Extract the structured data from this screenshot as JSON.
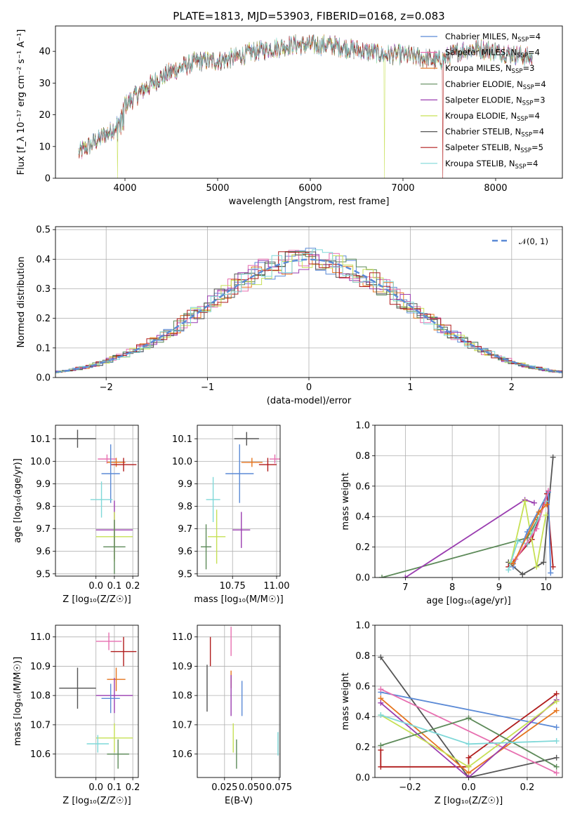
{
  "chart_data": [
    {
      "id": "spectrum",
      "type": "line",
      "title": "PLATE=1813, MJD=53903, FIBERID=0168, z=0.083",
      "xlabel": "wavelength [Angstrom, rest frame]",
      "ylabel": "Flux [f_λ 10⁻¹⁷ erg cm⁻² s⁻¹ A⁻¹]",
      "xlim": [
        3250,
        8720
      ],
      "ylim": [
        0,
        48
      ],
      "xticks": [
        "4000",
        "5000",
        "6000",
        "7000",
        "8000"
      ],
      "yticks": [
        "0",
        "10",
        "20",
        "30",
        "40"
      ],
      "legend_position": "upper right",
      "continuum": {
        "x": [
          3500,
          3700,
          3900,
          4000,
          4200,
          4400,
          4600,
          4800,
          5000,
          5200,
          5400,
          5600,
          5800,
          6000,
          6200,
          6400,
          6600,
          6800,
          7000,
          7200,
          7400,
          7600,
          7800,
          8000,
          8200,
          8400
        ],
        "y": [
          8,
          12,
          16,
          23,
          28,
          32,
          35,
          37,
          37,
          38,
          40,
          41,
          42,
          42,
          42,
          41,
          40,
          39,
          39,
          38,
          37,
          40,
          41,
          40,
          39,
          38
        ]
      },
      "dropouts": [
        {
          "series": "Kroupa ELODIE",
          "x": 3920
        },
        {
          "series": "Kroupa ELODIE",
          "x": 6800
        },
        {
          "series": "Salpeter STELIB",
          "x": 7430
        }
      ],
      "series": [
        {
          "name": "Chabrier MILES",
          "nssp": "4",
          "color": "#5b8ad6"
        },
        {
          "name": "Salpeter MILES",
          "nssp": "4",
          "color": "#e76fb0"
        },
        {
          "name": "Kroupa MILES",
          "nssp": "3",
          "color": "#e5751f"
        },
        {
          "name": "Chabrier ELODIE",
          "nssp": "4",
          "color": "#5d8a59"
        },
        {
          "name": "Salpeter ELODIE",
          "nssp": "3",
          "color": "#9a3db0"
        },
        {
          "name": "Kroupa ELODIE",
          "nssp": "4",
          "color": "#c6e055"
        },
        {
          "name": "Chabrier STELIB",
          "nssp": "4",
          "color": "#555555"
        },
        {
          "name": "Salpeter STELIB",
          "nssp": "5",
          "color": "#b01c1c"
        },
        {
          "name": "Kroupa STELIB",
          "nssp": "4",
          "color": "#7fd8d8"
        }
      ]
    },
    {
      "id": "residuals",
      "type": "histogram",
      "xlabel": "(data-model)/error",
      "ylabel": "Normed distribution",
      "xlim": [
        -2.5,
        2.5
      ],
      "ylim": [
        0,
        0.51
      ],
      "xticks": [
        -2,
        -1,
        0,
        1,
        2
      ],
      "yticks": [
        0.0,
        0.1,
        0.2,
        0.3,
        0.4,
        0.5
      ],
      "grid": true,
      "bin_width": 0.1,
      "legend_position": "upper right",
      "reference_curve": {
        "label": "𝒩(0, 1)",
        "mean": 0,
        "sigma": 1,
        "style": "dashed",
        "color": "#5b8ad6"
      }
    },
    {
      "id": "age_vs_z",
      "type": "errorbar",
      "xlabel": "Z [log₁₀(Z/Z☉)]",
      "ylabel": "age [log₁₀(age/yr)]",
      "xlim": [
        -0.22,
        0.23
      ],
      "ylim": [
        9.49,
        10.16
      ],
      "xticks": [
        0.0,
        0.1,
        0.2
      ],
      "xticklabels": [
        "0.0",
        "0.1",
        "0.2"
      ],
      "yticks": [
        9.5,
        9.6,
        9.7,
        9.8,
        9.9,
        10.0,
        10.1
      ],
      "grid": true,
      "points": [
        {
          "series": "Chabrier STELIB",
          "x": -0.1,
          "xerr": 0.1,
          "y": 10.1,
          "yerr": 0.04
        },
        {
          "series": "Salpeter MILES",
          "x": 0.06,
          "xerr": 0.05,
          "y": 10.01,
          "yerr": 0.02
        },
        {
          "series": "Kroupa MILES",
          "x": 0.11,
          "xerr": 0.05,
          "y": 9.995,
          "yerr": 0.02
        },
        {
          "series": "Salpeter STELIB",
          "x": 0.15,
          "xerr": 0.07,
          "y": 9.985,
          "yerr": 0.03
        },
        {
          "series": "Chabrier MILES",
          "x": 0.08,
          "xerr": 0.05,
          "y": 9.945,
          "yerr": 0.13
        },
        {
          "series": "Kroupa STELIB",
          "x": 0.03,
          "xerr": 0.06,
          "y": 9.83,
          "yerr": 0.08
        },
        {
          "series": "Salpeter ELODIE",
          "x": 0.1,
          "xerr": 0.1,
          "y": 9.695,
          "yerr": 0.13
        },
        {
          "series": "Kroupa ELODIE",
          "x": 0.1,
          "xerr": 0.1,
          "y": 9.665,
          "yerr": 0.11
        },
        {
          "series": "Chabrier ELODIE",
          "x": 0.1,
          "xerr": 0.06,
          "y": 9.62,
          "yerr": 0.12
        }
      ]
    },
    {
      "id": "age_vs_mass",
      "type": "errorbar",
      "xlabel": "mass [log₁₀(M/M☉)]",
      "xlim": [
        10.55,
        11.02
      ],
      "ylim": [
        9.49,
        10.16
      ],
      "xticks": [
        10.75,
        11.0
      ],
      "xticklabels": [
        "10.75",
        "11.00"
      ],
      "yticks": [
        9.5,
        9.6,
        9.7,
        9.8,
        9.9,
        10.0,
        10.1
      ],
      "grid": true,
      "points": [
        {
          "series": "Chabrier STELIB",
          "x": 10.83,
          "xerr": 0.07,
          "y": 10.1,
          "yerr": 0.03
        },
        {
          "series": "Salpeter MILES",
          "x": 10.99,
          "xerr": 0.03,
          "y": 10.01,
          "yerr": 0.02
        },
        {
          "series": "Kroupa MILES",
          "x": 10.86,
          "xerr": 0.06,
          "y": 9.995,
          "yerr": 0.02
        },
        {
          "series": "Salpeter STELIB",
          "x": 10.95,
          "xerr": 0.05,
          "y": 9.985,
          "yerr": 0.03
        },
        {
          "series": "Chabrier MILES",
          "x": 10.79,
          "xerr": 0.08,
          "y": 9.945,
          "yerr": 0.13
        },
        {
          "series": "Kroupa STELIB",
          "x": 10.64,
          "xerr": 0.04,
          "y": 9.83,
          "yerr": 0.1
        },
        {
          "series": "Salpeter ELODIE",
          "x": 10.8,
          "xerr": 0.05,
          "y": 9.695,
          "yerr": 0.08
        },
        {
          "series": "Kroupa ELODIE",
          "x": 10.66,
          "xerr": 0.05,
          "y": 9.665,
          "yerr": 0.12
        },
        {
          "series": "Chabrier ELODIE",
          "x": 10.6,
          "xerr": 0.03,
          "y": 9.62,
          "yerr": 0.1
        }
      ]
    },
    {
      "id": "massweight_vs_age",
      "type": "line",
      "xlabel": "age [log₁₀(age/yr)]",
      "ylabel": "mass weight",
      "xlim": [
        6.35,
        10.35
      ],
      "ylim": [
        0,
        1.0
      ],
      "xticks": [
        7,
        8,
        9,
        10
      ],
      "yticks": [
        0.0,
        0.2,
        0.4,
        0.6,
        0.8,
        1.0
      ],
      "grid": true,
      "series": [
        {
          "name": "Chabrier ELODIE",
          "points": [
            [
              6.5,
              0.0
            ],
            [
              9.6,
              0.26
            ],
            [
              9.82,
              0.38
            ]
          ]
        },
        {
          "name": "Salpeter ELODIE",
          "points": [
            [
              7.0,
              0.0
            ],
            [
              9.55,
              0.51
            ],
            [
              9.75,
              0.49
            ]
          ]
        },
        {
          "name": "Chabrier STELIB",
          "points": [
            [
              9.2,
              0.1
            ],
            [
              9.5,
              0.02
            ],
            [
              9.95,
              0.1
            ],
            [
              10.15,
              0.79
            ]
          ]
        },
        {
          "name": "Salpeter STELIB",
          "points": [
            [
              9.2,
              0.07
            ],
            [
              9.7,
              0.25
            ],
            [
              10.02,
              0.55
            ],
            [
              10.15,
              0.07
            ]
          ]
        },
        {
          "name": "Kroupa ELODIE",
          "points": [
            [
              9.25,
              0.1
            ],
            [
              9.55,
              0.5
            ],
            [
              9.8,
              0.07
            ],
            [
              10.0,
              0.41
            ]
          ]
        },
        {
          "name": "Chabrier MILES",
          "points": [
            [
              9.3,
              0.07
            ],
            [
              9.6,
              0.3
            ],
            [
              10.05,
              0.56
            ],
            [
              10.1,
              0.03
            ]
          ]
        },
        {
          "name": "Kroupa STELIB",
          "points": [
            [
              9.2,
              0.05
            ],
            [
              9.4,
              0.24
            ],
            [
              9.6,
              0.22
            ],
            [
              10.0,
              0.5
            ]
          ]
        },
        {
          "name": "Salpeter MILES",
          "points": [
            [
              9.35,
              0.12
            ],
            [
              9.8,
              0.32
            ],
            [
              10.05,
              0.57
            ]
          ]
        },
        {
          "name": "Kroupa MILES",
          "points": [
            [
              9.3,
              0.09
            ],
            [
              9.85,
              0.43
            ],
            [
              10.02,
              0.48
            ]
          ]
        }
      ]
    },
    {
      "id": "mass_vs_z",
      "type": "errorbar",
      "xlabel": "Z [log₁₀(Z/Z☉)]",
      "ylabel": "mass [log₁₀(M/M☉)]",
      "xlim": [
        -0.22,
        0.23
      ],
      "ylim": [
        10.52,
        11.04
      ],
      "xticks": [
        0.0,
        0.1,
        0.2
      ],
      "xticklabels": [
        "0.0",
        "0.1",
        "0.2"
      ],
      "yticks": [
        10.6,
        10.7,
        10.8,
        10.9,
        11.0
      ],
      "grid": true,
      "points": [
        {
          "series": "Salpeter MILES",
          "x": 0.07,
          "xerr": 0.07,
          "y": 10.985,
          "yerr": 0.03
        },
        {
          "series": "Salpeter STELIB",
          "x": 0.15,
          "xerr": 0.07,
          "y": 10.95,
          "yerr": 0.05
        },
        {
          "series": "Kroupa MILES",
          "x": 0.11,
          "xerr": 0.05,
          "y": 10.855,
          "yerr": 0.04
        },
        {
          "series": "Chabrier STELIB",
          "x": -0.1,
          "xerr": 0.1,
          "y": 10.825,
          "yerr": 0.07
        },
        {
          "series": "Salpeter ELODIE",
          "x": 0.1,
          "xerr": 0.1,
          "y": 10.8,
          "yerr": 0.06
        },
        {
          "series": "Chabrier MILES",
          "x": 0.08,
          "xerr": 0.05,
          "y": 10.79,
          "yerr": 0.05
        },
        {
          "series": "Kroupa ELODIE",
          "x": 0.1,
          "xerr": 0.1,
          "y": 10.655,
          "yerr": 0.05
        },
        {
          "series": "Kroupa STELIB",
          "x": 0.01,
          "xerr": 0.06,
          "y": 10.635,
          "yerr": 0.03
        },
        {
          "series": "Chabrier ELODIE",
          "x": 0.12,
          "xerr": 0.06,
          "y": 10.6,
          "yerr": 0.05
        }
      ]
    },
    {
      "id": "mass_vs_ebv",
      "type": "errorbar",
      "xlabel": "E(B-V)",
      "xlim": [
        0.0,
        0.076
      ],
      "ylim": [
        10.52,
        11.04
      ],
      "xticks": [
        0.025,
        0.05,
        0.075
      ],
      "xticklabels": [
        "0.025",
        "0.050",
        "0.075"
      ],
      "yticks": [
        10.6,
        10.7,
        10.8,
        10.9,
        11.0
      ],
      "grid": true,
      "points": [
        {
          "series": "Salpeter MILES",
          "x": 0.031,
          "xerr": 0,
          "y": 10.985,
          "yerr": 0.05
        },
        {
          "series": "Salpeter STELIB",
          "x": 0.012,
          "xerr": 0,
          "y": 10.95,
          "yerr": 0.05
        },
        {
          "series": "Kroupa MILES",
          "x": 0.031,
          "xerr": 0,
          "y": 10.855,
          "yerr": 0.03
        },
        {
          "series": "Chabrier STELIB",
          "x": 0.009,
          "xerr": 0,
          "y": 10.825,
          "yerr": 0.08
        },
        {
          "series": "Salpeter ELODIE",
          "x": 0.031,
          "xerr": 0,
          "y": 10.8,
          "yerr": 0.07
        },
        {
          "series": "Chabrier MILES",
          "x": 0.041,
          "xerr": 0,
          "y": 10.79,
          "yerr": 0.06
        },
        {
          "series": "Kroupa ELODIE",
          "x": 0.033,
          "xerr": 0,
          "y": 10.655,
          "yerr": 0.05
        },
        {
          "series": "Kroupa STELIB",
          "x": 0.074,
          "xerr": 0,
          "y": 10.635,
          "yerr": 0.04
        },
        {
          "series": "Chabrier ELODIE",
          "x": 0.036,
          "xerr": 0,
          "y": 10.6,
          "yerr": 0.05
        }
      ]
    },
    {
      "id": "massweight_vs_z",
      "type": "line",
      "xlabel": "Z [log₁₀(Z/Z☉)]",
      "ylabel": "mass weight",
      "xlim": [
        -0.32,
        0.32
      ],
      "ylim": [
        0,
        1.0
      ],
      "xticks": [
        -0.2,
        0.0,
        0.2
      ],
      "xticklabels": [
        "−0.2",
        "0.0",
        "0.2"
      ],
      "yticks": [
        0.0,
        0.2,
        0.4,
        0.6,
        0.8,
        1.0
      ],
      "grid": true,
      "series": [
        {
          "name": "Chabrier STELIB",
          "points": [
            [
              -0.3,
              0.79
            ],
            [
              0.0,
              0.0
            ],
            [
              0.3,
              0.13
            ]
          ]
        },
        {
          "name": "Salpeter STELIB",
          "points": [
            [
              -0.3,
              0.18
            ],
            [
              -0.3,
              0.07
            ],
            [
              0.0,
              0.07
            ],
            [
              0.0,
              0.13
            ],
            [
              0.3,
              0.55
            ]
          ]
        },
        {
          "name": "Chabrier MILES",
          "points": [
            [
              -0.3,
              0.56
            ],
            [
              0.3,
              0.33
            ]
          ]
        },
        {
          "name": "Salpeter MILES",
          "points": [
            [
              -0.3,
              0.58
            ],
            [
              0.3,
              0.03
            ]
          ]
        },
        {
          "name": "Kroupa MILES",
          "points": [
            [
              -0.3,
              0.52
            ],
            [
              0.0,
              0.03
            ],
            [
              0.3,
              0.44
            ]
          ]
        },
        {
          "name": "Salpeter ELODIE",
          "points": [
            [
              -0.3,
              0.49
            ],
            [
              0.0,
              0.0
            ],
            [
              0.3,
              0.51
            ]
          ]
        },
        {
          "name": "Kroupa ELODIE",
          "points": [
            [
              -0.3,
              0.41
            ],
            [
              0.0,
              0.07
            ],
            [
              0.3,
              0.5
            ]
          ]
        },
        {
          "name": "Chabrier ELODIE",
          "points": [
            [
              -0.3,
              0.21
            ],
            [
              0.0,
              0.39
            ],
            [
              0.3,
              0.07
            ]
          ]
        },
        {
          "name": "Kroupa STELIB",
          "points": [
            [
              -0.3,
              0.41
            ],
            [
              0.0,
              0.22
            ],
            [
              0.3,
              0.24
            ]
          ]
        }
      ]
    }
  ]
}
